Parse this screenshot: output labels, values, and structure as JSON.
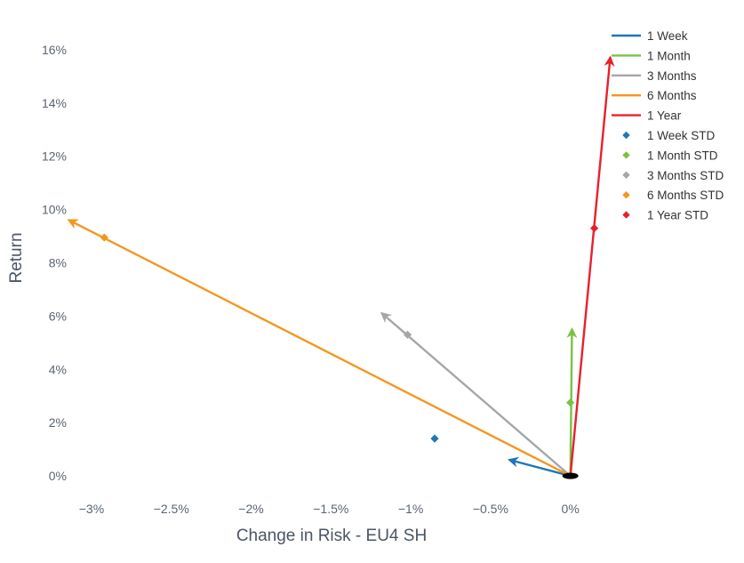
{
  "chart_data": {
    "type": "line",
    "title": "",
    "xlabel": "Change in Risk - EU4 SH",
    "ylabel": "Return",
    "xlim": [
      -3.1,
      0.13
    ],
    "ylim": [
      -0.9,
      16.6
    ],
    "x_ticks": [
      {
        "value": -3.0,
        "label": "−3%"
      },
      {
        "value": -2.5,
        "label": "−2.5%"
      },
      {
        "value": -2.0,
        "label": "−2%"
      },
      {
        "value": -1.5,
        "label": "−1.5%"
      },
      {
        "value": -1.0,
        "label": "−1%"
      },
      {
        "value": -0.5,
        "label": "−0.5%"
      },
      {
        "value": 0.0,
        "label": "0%"
      }
    ],
    "y_ticks": [
      {
        "value": 0,
        "label": "0%"
      },
      {
        "value": 2,
        "label": "2%"
      },
      {
        "value": 4,
        "label": "4%"
      },
      {
        "value": 6,
        "label": "6%"
      },
      {
        "value": 8,
        "label": "8%"
      },
      {
        "value": 10,
        "label": "10%"
      },
      {
        "value": 12,
        "label": "12%"
      },
      {
        "value": 14,
        "label": "14%"
      },
      {
        "value": 16,
        "label": "16%"
      }
    ],
    "origin": {
      "x": 0,
      "y": 0
    },
    "series": [
      {
        "name": "1 Week",
        "color": "#1f77b4",
        "x": [
          0,
          -0.38
        ],
        "y": [
          0,
          0.6
        ]
      },
      {
        "name": "1 Month",
        "color": "#7ac143",
        "x": [
          0,
          0.01
        ],
        "y": [
          0,
          5.5
        ]
      },
      {
        "name": "3 Months",
        "color": "#a6a6a6",
        "x": [
          0,
          -1.18
        ],
        "y": [
          0,
          6.1
        ]
      },
      {
        "name": "6 Months",
        "color": "#f7941d",
        "x": [
          0,
          -3.14
        ],
        "y": [
          0,
          9.6
        ]
      },
      {
        "name": "1 Year",
        "color": "#e8202a",
        "x": [
          0,
          0.25
        ],
        "y": [
          0,
          15.7
        ]
      }
    ],
    "std_points": [
      {
        "name": "1 Week STD",
        "color": "#1f77b4",
        "x": -0.85,
        "y": 1.4
      },
      {
        "name": "1 Month STD",
        "color": "#7ac143",
        "x": 0.0,
        "y": 2.75
      },
      {
        "name": "3 Months STD",
        "color": "#a6a6a6",
        "x": -1.02,
        "y": 5.3
      },
      {
        "name": "6 Months STD",
        "color": "#f7941d",
        "x": -2.92,
        "y": 8.95
      },
      {
        "name": "1 Year STD",
        "color": "#e8202a",
        "x": 0.15,
        "y": 9.3
      }
    ],
    "grid": false,
    "legend_position": "top-right"
  }
}
